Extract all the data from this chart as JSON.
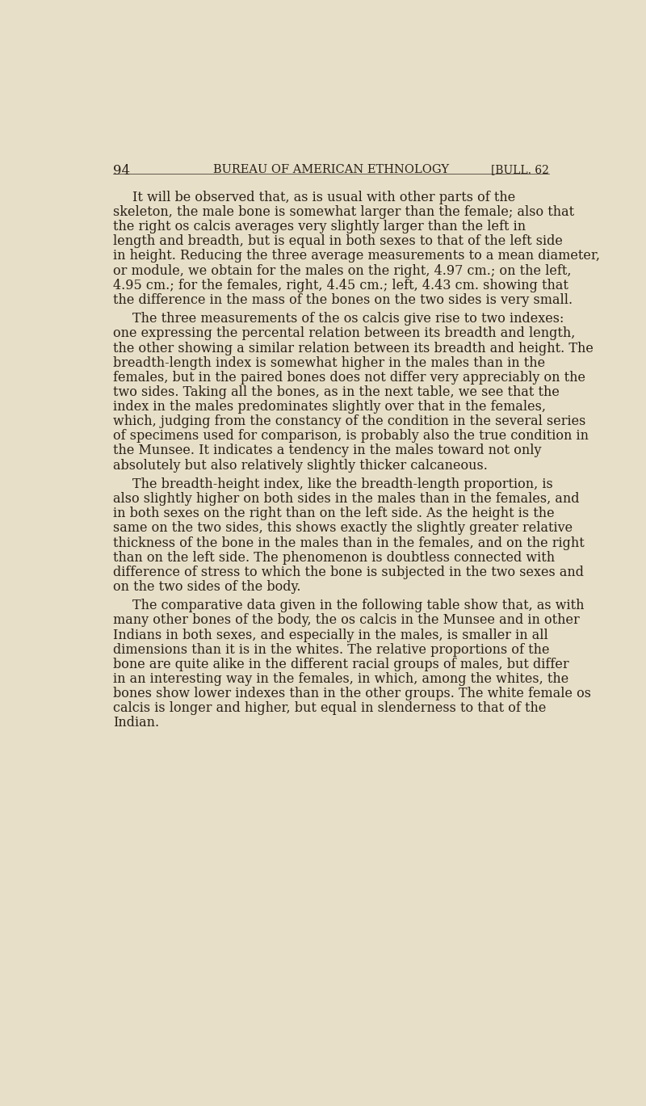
{
  "background_color": "#e8dfc8",
  "page_number": "94",
  "header_center": "BUREAU OF AMERICAN ETHNOLOGY",
  "header_right": "[BULL. 62",
  "header_fontsize": 10.5,
  "page_number_fontsize": 12,
  "body_fontsize": 11.5,
  "text_color": "#2a2018",
  "paragraphs": [
    {
      "indent": true,
      "text": "It will be observed that, as is usual with other parts of the skeleton, the male bone is somewhat larger than the female; also that the right os calcis averages very slightly larger than the left in length and breadth, but is equal in both sexes to that of the left side in height.  Reducing the three average measurements to a mean diameter, or module, we obtain for the males on the right, 4.97 cm.; on the left, 4.95 cm.; for the females, right, 4.45 cm.; left, 4.43 cm. showing that the difference in the mass of the bones on the two sides is very small."
    },
    {
      "indent": true,
      "text": "The three measurements of the os calcis give rise to two indexes: one expressing the percental relation between its breadth and length, the other showing a similar relation between its breadth and height. The breadth-length index is somewhat higher in the males than in the females, but in the paired bones does not differ very appreciably on the two sides.  Taking all the bones, as in the next table, we see that the index in the males predominates slightly over that in the females, which, judging from the constancy of the condition in the several series of specimens used for comparison, is probably also the true condition in the Munsee.  It indicates a tendency in the males toward not only absolutely but also relatively slightly thicker calcaneous."
    },
    {
      "indent": true,
      "text": "The breadth-height index, like the breadth-length proportion, is also slightly higher on both sides in the males than in the females, and in both sexes on the right than on the left side.  As the height is the same on the two sides, this shows exactly the slightly greater relative thickness of the bone in the males than in the females, and on the right than on the left side.  The phenomenon is doubtless connected with difference of stress to which the bone is subjected in the two sexes and on the two sides of the body."
    },
    {
      "indent": true,
      "text": "The comparative data given in the following table show that, as with many other bones of the body, the os calcis in the Munsee and in other Indians in both sexes, and especially in the males, is smaller in all dimensions than it is in the whites.  The relative proportions of the bone are quite alike in the different racial groups of males, but differ in an interesting way in the females, in which, among the whites, the bones show lower indexes than in the other groups.  The white female os calcis is longer and higher, but equal in slenderness to that of the Indian."
    }
  ]
}
